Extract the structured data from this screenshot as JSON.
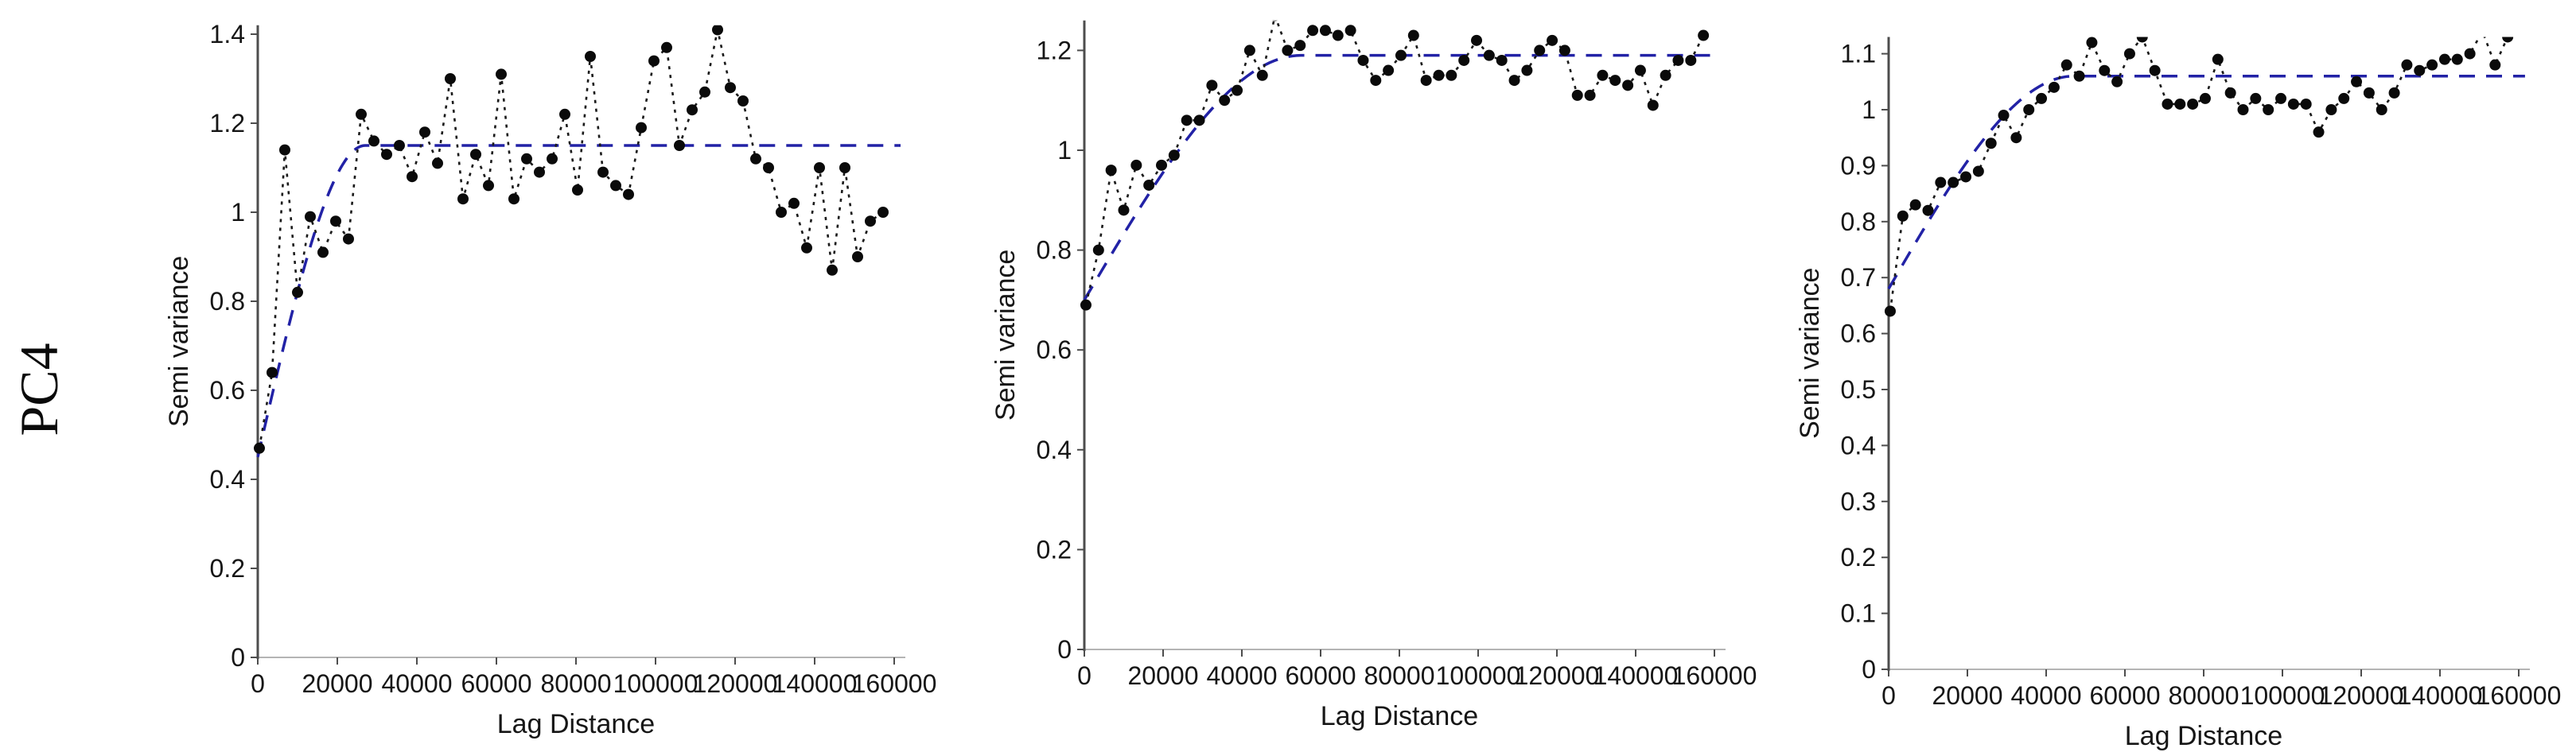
{
  "row_label": "PC4",
  "styles": {
    "background": "#ffffff",
    "point": "#0a0a0a",
    "empirical_line": "#1a1a1a",
    "model_line": "#2222a6",
    "axis": "#4d4d4d",
    "baseline": "#b4b4b4",
    "text": "#161616"
  },
  "chart_data": [
    {
      "type": "line",
      "title": "",
      "xlabel": "Lag Distance",
      "ylabel": "Semi variance",
      "legend": "none",
      "grid": false,
      "xlim": [
        0,
        160000
      ],
      "ylim": [
        0,
        1.42
      ],
      "x_ticks": [
        0,
        20000,
        40000,
        60000,
        80000,
        100000,
        120000,
        140000,
        160000
      ],
      "x_tick_labels": [
        "0",
        "20000",
        "40000",
        "60000",
        "80000",
        "100000",
        "120000",
        "140000",
        "160000"
      ],
      "y_ticks": [
        0,
        0.2,
        0.4,
        0.6,
        0.8,
        1.0,
        1.2,
        1.4
      ],
      "y_tick_labels": [
        "0",
        "0.2",
        "0.4",
        "0.6",
        "0.8",
        "1",
        "1.2",
        "1.4"
      ],
      "series": [
        {
          "name": "empirical-semivariance",
          "style": "black-dotted-line-with-points",
          "x": [
            400,
            3600,
            6800,
            10000,
            13200,
            16400,
            19600,
            22800,
            26000,
            29200,
            32400,
            35600,
            38800,
            42000,
            45200,
            48400,
            51600,
            54800,
            58000,
            61200,
            64400,
            67600,
            70800,
            74000,
            77200,
            80400,
            83600,
            86800,
            90000,
            93200,
            96400,
            99600,
            102800,
            106000,
            109200,
            112400,
            115600,
            118800,
            122000,
            125200,
            128400,
            131600,
            134800,
            138000,
            141200,
            144400,
            147600,
            150800,
            154000,
            157200
          ],
          "y": [
            0.47,
            0.64,
            1.14,
            0.82,
            0.99,
            0.91,
            0.98,
            0.94,
            1.22,
            1.16,
            1.13,
            1.15,
            1.08,
            1.18,
            1.11,
            1.3,
            1.03,
            1.13,
            1.06,
            1.31,
            1.03,
            1.12,
            1.09,
            1.12,
            1.22,
            1.05,
            1.35,
            1.09,
            1.06,
            1.04,
            1.19,
            1.34,
            1.37,
            1.15,
            1.23,
            1.27,
            1.41,
            1.28,
            1.25,
            1.12,
            1.1,
            1.0,
            1.02,
            0.92,
            1.1,
            0.87,
            1.1,
            0.9,
            0.98,
            1.0
          ]
        },
        {
          "name": "fitted-variogram-model",
          "style": "blue-dashed-line",
          "model": {
            "nugget": 0.45,
            "sill": 1.15,
            "range": 27000
          }
        }
      ]
    },
    {
      "type": "line",
      "title": "",
      "xlabel": "Lag Distance",
      "ylabel": "Semi variance",
      "legend": "none",
      "grid": false,
      "xlim": [
        0,
        160000
      ],
      "ylim": [
        0,
        1.26
      ],
      "x_ticks": [
        0,
        20000,
        40000,
        60000,
        80000,
        100000,
        120000,
        140000,
        160000
      ],
      "x_tick_labels": [
        "0",
        "20000",
        "40000",
        "60000",
        "80000",
        "100000",
        "120000",
        "140000",
        "160000"
      ],
      "y_ticks": [
        0,
        0.2,
        0.4,
        0.6,
        0.8,
        1.0,
        1.2
      ],
      "y_tick_labels": [
        "0",
        "0.2",
        "0.4",
        "0.6",
        "0.8",
        "1",
        "1.2"
      ],
      "series": [
        {
          "name": "empirical-semivariance",
          "style": "black-dotted-line-with-points",
          "x": [
            400,
            3600,
            6800,
            10000,
            13200,
            16400,
            19600,
            22800,
            26000,
            29200,
            32400,
            35600,
            38800,
            42000,
            45200,
            48400,
            51600,
            54800,
            58000,
            61200,
            64400,
            67600,
            70800,
            74000,
            77200,
            80400,
            83600,
            86800,
            90000,
            93200,
            96400,
            99600,
            102800,
            106000,
            109200,
            112400,
            115600,
            118800,
            122000,
            125200,
            128400,
            131600,
            134800,
            138000,
            141200,
            144400,
            147600,
            150800,
            154000,
            157200
          ],
          "y": [
            0.69,
            0.8,
            0.96,
            0.88,
            0.97,
            0.93,
            0.97,
            0.99,
            1.06,
            1.06,
            1.13,
            1.1,
            1.12,
            1.2,
            1.15,
            1.27,
            1.2,
            1.21,
            1.24,
            1.24,
            1.23,
            1.24,
            1.18,
            1.14,
            1.16,
            1.19,
            1.23,
            1.14,
            1.15,
            1.15,
            1.18,
            1.22,
            1.19,
            1.18,
            1.14,
            1.16,
            1.2,
            1.22,
            1.2,
            1.11,
            1.11,
            1.15,
            1.14,
            1.13,
            1.16,
            1.09,
            1.15,
            1.18,
            1.18,
            1.23
          ]
        },
        {
          "name": "fitted-variogram-model",
          "style": "blue-dashed-line",
          "model": {
            "nugget": 0.7,
            "sill": 1.19,
            "range": 55000
          }
        }
      ]
    },
    {
      "type": "line",
      "title": "",
      "xlabel": "Lag Distance",
      "ylabel": "Semi variance",
      "legend": "none",
      "grid": false,
      "xlim": [
        0,
        160000
      ],
      "ylim": [
        0,
        1.13
      ],
      "x_ticks": [
        0,
        20000,
        40000,
        60000,
        80000,
        100000,
        120000,
        140000,
        160000
      ],
      "x_tick_labels": [
        "0",
        "20000",
        "40000",
        "60000",
        "80000",
        "100000",
        "120000",
        "140000",
        "160000"
      ],
      "y_ticks": [
        0,
        0.1,
        0.2,
        0.3,
        0.4,
        0.5,
        0.6,
        0.7,
        0.8,
        0.9,
        1.0,
        1.1
      ],
      "y_tick_labels": [
        "0",
        "0.1",
        "0.2",
        "0.3",
        "0.4",
        "0.5",
        "0.6",
        "0.7",
        "0.8",
        "0.9",
        "1",
        "1.1"
      ],
      "series": [
        {
          "name": "empirical-semivariance",
          "style": "black-dotted-line-with-points",
          "x": [
            400,
            3600,
            6800,
            10000,
            13200,
            16400,
            19600,
            22800,
            26000,
            29200,
            32400,
            35600,
            38800,
            42000,
            45200,
            48400,
            51600,
            54800,
            58000,
            61200,
            64400,
            67600,
            70800,
            74000,
            77200,
            80400,
            83600,
            86800,
            90000,
            93200,
            96400,
            99600,
            102800,
            106000,
            109200,
            112400,
            115600,
            118800,
            122000,
            125200,
            128400,
            131600,
            134800,
            138000,
            141200,
            144400,
            147600,
            150800,
            154000,
            157200
          ],
          "y": [
            0.64,
            0.81,
            0.83,
            0.82,
            0.87,
            0.87,
            0.88,
            0.89,
            0.94,
            0.99,
            0.95,
            1.0,
            1.02,
            1.04,
            1.08,
            1.06,
            1.12,
            1.07,
            1.05,
            1.1,
            1.13,
            1.07,
            1.01,
            1.01,
            1.01,
            1.02,
            1.09,
            1.03,
            1.0,
            1.02,
            1.0,
            1.02,
            1.01,
            1.01,
            0.96,
            1.0,
            1.02,
            1.05,
            1.03,
            1.0,
            1.03,
            1.08,
            1.07,
            1.08,
            1.09,
            1.09,
            1.1,
            1.14,
            1.08,
            1.13
          ]
        },
        {
          "name": "fitted-variogram-model",
          "style": "blue-dashed-line",
          "model": {
            "nugget": 0.68,
            "sill": 1.06,
            "range": 47000
          }
        }
      ]
    }
  ]
}
